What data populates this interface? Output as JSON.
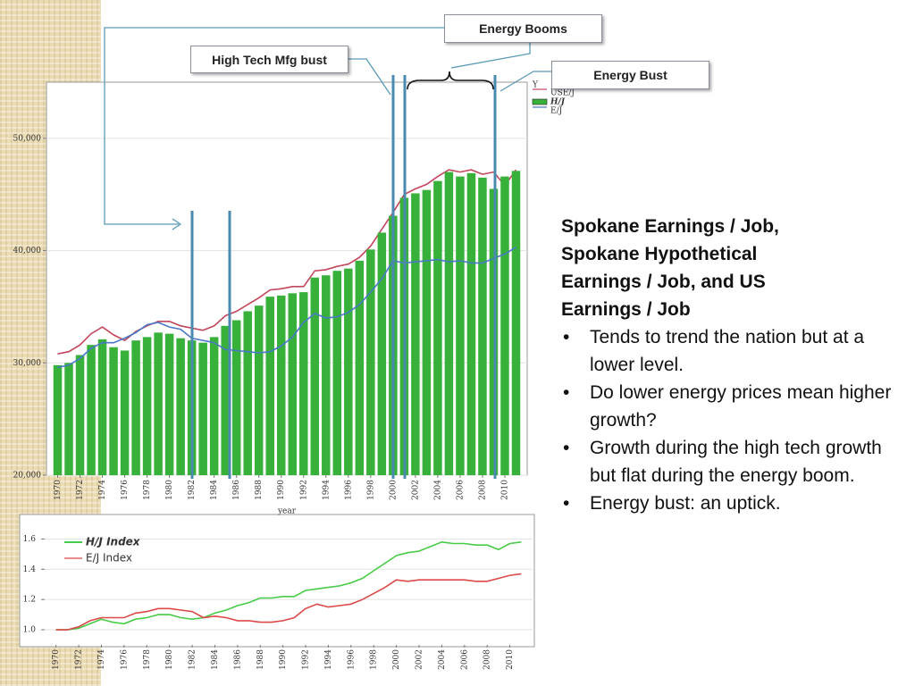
{
  "callouts": [
    "Energy Booms",
    "High Tech Mfg bust",
    "Energy Bust"
  ],
  "chart_data": [
    {
      "type": "bar",
      "x_label": "year",
      "y_label": "Y",
      "x": [
        1970,
        1971,
        1972,
        1973,
        1974,
        1975,
        1976,
        1977,
        1978,
        1979,
        1980,
        1981,
        1982,
        1983,
        1984,
        1985,
        1986,
        1987,
        1988,
        1989,
        1990,
        1991,
        1992,
        1993,
        1994,
        1995,
        1996,
        1997,
        1998,
        1999,
        2000,
        2001,
        2002,
        2003,
        2004,
        2005,
        2006,
        2007,
        2008,
        2009,
        2010,
        2011
      ],
      "xlim": [
        1969,
        2012
      ],
      "xticks": [
        1970,
        1972,
        1974,
        1976,
        1978,
        1980,
        1982,
        1984,
        1986,
        1988,
        1990,
        1992,
        1994,
        1996,
        1998,
        2000,
        2002,
        2004,
        2006,
        2008,
        2010
      ],
      "ylim": [
        20000,
        55000
      ],
      "yticks": [
        {
          "value": 20000,
          "label": "20,000"
        },
        {
          "value": 30000,
          "label": "30,000"
        },
        {
          "value": 40000,
          "label": "40,000"
        },
        {
          "value": 50000,
          "label": "50,000"
        }
      ],
      "grid": true,
      "legend": "right-outside",
      "series": [
        {
          "name": "USE/J",
          "type": "line",
          "color": "#c2465c",
          "values": [
            30800,
            31000,
            31600,
            32600,
            33200,
            32500,
            32000,
            32800,
            33300,
            33700,
            33700,
            33300,
            33100,
            32900,
            33300,
            34200,
            34600,
            35200,
            35800,
            36500,
            36600,
            36800,
            36800,
            38200,
            38300,
            38600,
            38800,
            39400,
            40400,
            41900,
            43400,
            45000,
            45500,
            45900,
            46600,
            47200,
            47000,
            47200,
            46800,
            47000,
            45800,
            47200
          ]
        },
        {
          "name": "H/J",
          "type": "bar",
          "color": "#37b13a",
          "values": [
            29800,
            30000,
            30700,
            31600,
            32100,
            31400,
            31100,
            32000,
            32300,
            32700,
            32600,
            32200,
            32000,
            31800,
            32300,
            33300,
            33800,
            34600,
            35100,
            35900,
            36000,
            36200,
            36300,
            37600,
            37800,
            38200,
            38400,
            39100,
            40100,
            41600,
            43100,
            44700,
            45100,
            45400,
            46200,
            47000,
            46600,
            46900,
            46500,
            45500,
            46600,
            47100
          ]
        },
        {
          "name": "E/J",
          "type": "line",
          "color": "#4a78c8",
          "values": [
            29600,
            29800,
            30400,
            31300,
            31800,
            31800,
            32200,
            32700,
            33400,
            33600,
            33200,
            33000,
            32200,
            32000,
            31800,
            31200,
            31100,
            31000,
            30900,
            31000,
            31500,
            32300,
            33600,
            34400,
            34000,
            34100,
            34500,
            35200,
            36300,
            37500,
            39100,
            38900,
            39000,
            39100,
            39200,
            39000,
            39100,
            38900,
            38900,
            39300,
            39700,
            40300
          ]
        }
      ]
    },
    {
      "type": "line",
      "x": [
        1970,
        1971,
        1972,
        1973,
        1974,
        1975,
        1976,
        1977,
        1978,
        1979,
        1980,
        1981,
        1982,
        1983,
        1984,
        1985,
        1986,
        1987,
        1988,
        1989,
        1990,
        1991,
        1992,
        1993,
        1994,
        1995,
        1996,
        1997,
        1998,
        1999,
        2000,
        2001,
        2002,
        2003,
        2004,
        2005,
        2006,
        2007,
        2008,
        2009,
        2010,
        2011
      ],
      "xlim": [
        1969,
        2012
      ],
      "xticks": [
        1970,
        1972,
        1974,
        1976,
        1978,
        1980,
        1982,
        1984,
        1986,
        1988,
        1990,
        1992,
        1994,
        1996,
        1998,
        2000,
        2002,
        2004,
        2006,
        2008,
        2010
      ],
      "ylim": [
        0.9,
        1.75
      ],
      "yticks": [
        {
          "value": 1,
          "label": "1.0"
        },
        1.2,
        1.4,
        1.6
      ],
      "grid": true,
      "legend": "upper-left",
      "series": [
        {
          "name": "H/J Index",
          "color": "#46cc46",
          "values": [
            1.0,
            1.0,
            1.01,
            1.04,
            1.07,
            1.05,
            1.04,
            1.07,
            1.08,
            1.1,
            1.1,
            1.08,
            1.07,
            1.08,
            1.11,
            1.13,
            1.16,
            1.18,
            1.21,
            1.21,
            1.22,
            1.22,
            1.26,
            1.27,
            1.28,
            1.29,
            1.31,
            1.34,
            1.39,
            1.44,
            1.49,
            1.51,
            1.52,
            1.55,
            1.58,
            1.57,
            1.57,
            1.56,
            1.56,
            1.53,
            1.57,
            1.58
          ]
        },
        {
          "name": "E/J Index",
          "color": "#dd4848",
          "values": [
            1.0,
            1.0,
            1.02,
            1.06,
            1.08,
            1.08,
            1.08,
            1.11,
            1.12,
            1.14,
            1.14,
            1.13,
            1.12,
            1.08,
            1.09,
            1.08,
            1.06,
            1.06,
            1.05,
            1.05,
            1.06,
            1.08,
            1.14,
            1.17,
            1.15,
            1.16,
            1.17,
            1.2,
            1.24,
            1.28,
            1.33,
            1.32,
            1.33,
            1.33,
            1.33,
            1.33,
            1.33,
            1.32,
            1.32,
            1.34,
            1.36,
            1.37
          ]
        }
      ]
    }
  ],
  "text": {
    "heading": "Spokane Earnings / Job, Spokane Hypothetical Earnings / Job, and US Earnings / Job",
    "bullets": [
      "Tends to trend the nation but at a lower level.",
      "Do lower energy prices mean higher growth?",
      "Growth during the high tech growth but flat during the energy boom.",
      "Energy bust: an uptick."
    ]
  }
}
